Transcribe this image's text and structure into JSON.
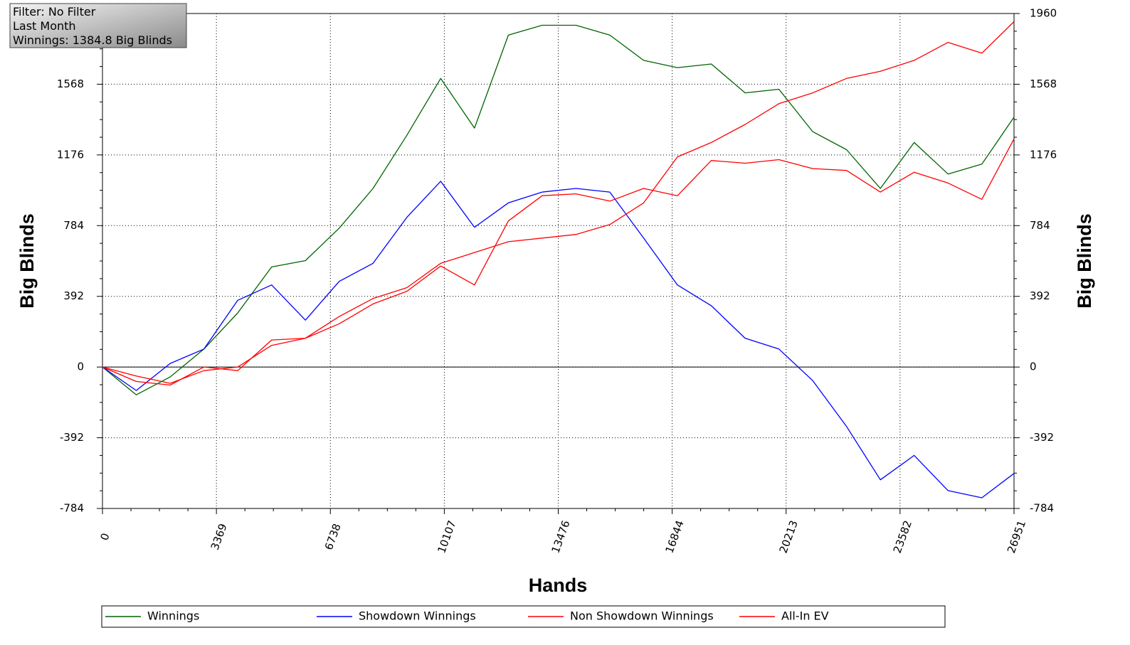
{
  "chart_data": {
    "type": "line",
    "annotations": [
      "Filter: No Filter",
      "Last Month",
      "Winnings: 1384.8 Big Blinds"
    ],
    "x_label": "Hands",
    "y_label": "Big Blinds",
    "x": [
      0,
      1000,
      2000,
      3000,
      4000,
      5000,
      6000,
      7000,
      8000,
      9000,
      10000,
      11000,
      12000,
      13000,
      14000,
      15000,
      16000,
      17000,
      18000,
      19000,
      20000,
      21000,
      22000,
      23000,
      24000,
      25000,
      26000,
      26951
    ],
    "xlim": [
      0,
      26951
    ],
    "xticks": [
      0,
      3369,
      6738,
      10107,
      13476,
      16844,
      20213,
      23582,
      26951
    ],
    "ylim": [
      -784,
      1960
    ],
    "yticks": [
      -784,
      -392,
      0,
      392,
      784,
      1176,
      1568,
      1960
    ],
    "grid": true,
    "legend": "bottom",
    "series": [
      {
        "name": "Winnings",
        "color": "#006400",
        "values": [
          0,
          -154,
          -55,
          100,
          300,
          555,
          590,
          770,
          990,
          1285,
          1600,
          1325,
          1840,
          1895,
          1895,
          1840,
          1700,
          1660,
          1680,
          1520,
          1540,
          1305,
          1205,
          990,
          1245,
          1070,
          1125,
          1385
        ]
      },
      {
        "name": "Showdown Winnings",
        "color": "#0000ff",
        "values": [
          0,
          -130,
          20,
          100,
          370,
          455,
          260,
          475,
          575,
          830,
          1030,
          775,
          910,
          970,
          990,
          970,
          715,
          455,
          340,
          160,
          100,
          -75,
          -330,
          -625,
          -490,
          -685,
          -725,
          -590
        ]
      },
      {
        "name": "Non Showdown Winnings",
        "color": "#ff0000",
        "values": [
          0,
          -50,
          -90,
          -20,
          0,
          120,
          160,
          280,
          380,
          440,
          575,
          635,
          695,
          715,
          735,
          790,
          910,
          1165,
          1245,
          1345,
          1460,
          1520,
          1600,
          1640,
          1700,
          1800,
          1740,
          1915
        ]
      },
      {
        "name": "All-In EV",
        "color": "#ff0000",
        "values": [
          0,
          -80,
          -100,
          0,
          -20,
          150,
          160,
          240,
          350,
          420,
          560,
          455,
          810,
          950,
          960,
          920,
          990,
          950,
          1145,
          1130,
          1150,
          1100,
          1090,
          970,
          1080,
          1020,
          930,
          1265
        ]
      }
    ]
  }
}
